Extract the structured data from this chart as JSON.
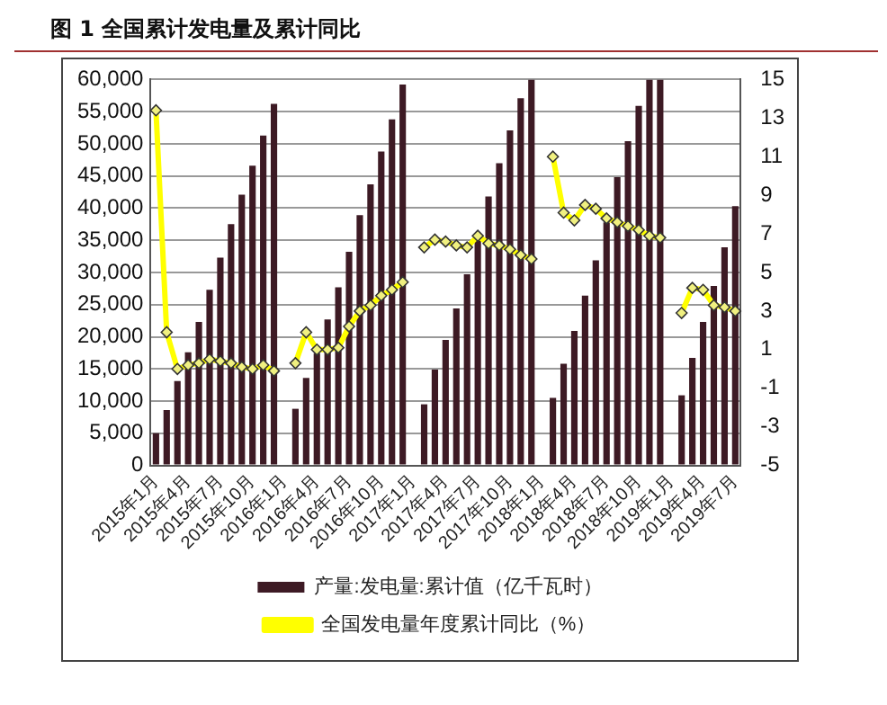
{
  "chart_data": {
    "type": "bar",
    "title": "图 1 全国累计发电量及累计同比",
    "categories": [
      "2015年1月",
      null,
      null,
      "2015年4月",
      null,
      null,
      "2015年7月",
      null,
      null,
      "2015年10月",
      null,
      null,
      "2016年1月",
      null,
      null,
      "2016年4月",
      null,
      null,
      "2016年7月",
      null,
      null,
      "2016年10月",
      null,
      null,
      "2017年1月",
      null,
      null,
      "2017年4月",
      null,
      null,
      "2017年7月",
      null,
      null,
      "2017年10月",
      null,
      null,
      "2018年1月",
      null,
      null,
      "2018年4月",
      null,
      null,
      "2018年7月",
      null,
      null,
      "2018年10月",
      null,
      null,
      "2019年1月",
      null,
      null,
      "2019年4月",
      null,
      null,
      "2019年7月"
    ],
    "series": [
      {
        "name": "产量:发电量:累计值（亿千瓦时）",
        "color": "#3d1a24",
        "values": [
          5000,
          8600,
          13100,
          17600,
          22300,
          27300,
          32300,
          37500,
          42100,
          46600,
          51300,
          56200,
          null,
          8800,
          13600,
          17400,
          22700,
          27700,
          33200,
          38900,
          43700,
          48800,
          53800,
          59200,
          null,
          9500,
          14900,
          19500,
          24400,
          29700,
          35600,
          41800,
          47000,
          52100,
          57100,
          60000,
          null,
          10500,
          15800,
          20900,
          26400,
          31900,
          37800,
          44800,
          50400,
          55900,
          60000,
          60000,
          null,
          10900,
          16700,
          22300,
          27900,
          33900,
          40300
        ]
      },
      {
        "name": "全国发电量年度累计同比（%）",
        "type": "line",
        "axis": "y2",
        "color": "#ffff00",
        "values": [
          13.4,
          1.9,
          0.0,
          0.2,
          0.3,
          0.5,
          0.4,
          0.3,
          0.1,
          0.0,
          0.2,
          -0.1,
          null,
          0.3,
          1.9,
          1.0,
          1.0,
          1.1,
          2.2,
          3.0,
          3.3,
          3.8,
          4.1,
          4.5,
          null,
          6.3,
          6.7,
          6.6,
          6.4,
          6.3,
          6.9,
          6.5,
          6.4,
          6.2,
          5.9,
          5.7,
          null,
          11.0,
          8.1,
          7.7,
          8.5,
          8.3,
          7.8,
          7.6,
          7.4,
          7.2,
          6.9,
          6.8,
          null,
          2.9,
          4.2,
          4.1,
          3.3,
          3.2,
          3.0
        ]
      }
    ],
    "ylim": [
      0,
      60000
    ],
    "yticks": [
      0,
      {
        "value": 5000,
        "label": "5,000"
      },
      {
        "value": 10000,
        "label": "10,000"
      },
      {
        "value": 15000,
        "label": "15,000"
      },
      {
        "value": 20000,
        "label": "20,000"
      },
      {
        "value": 25000,
        "label": "25,000"
      },
      {
        "value": 30000,
        "label": "30,000"
      },
      {
        "value": 35000,
        "label": "35,000"
      },
      {
        "value": 40000,
        "label": "40,000"
      },
      {
        "value": 45000,
        "label": "45,000"
      },
      {
        "value": 50000,
        "label": "50,000"
      },
      {
        "value": 55000,
        "label": "55,000"
      },
      {
        "value": 60000,
        "label": "60,000"
      }
    ],
    "y2lim": [
      -5,
      15
    ],
    "y2ticks": [
      -5,
      -3,
      -1,
      1,
      3,
      5,
      7,
      9,
      11,
      13,
      15
    ],
    "grid": "y",
    "legend": "bottom",
    "marker": "diamond"
  }
}
